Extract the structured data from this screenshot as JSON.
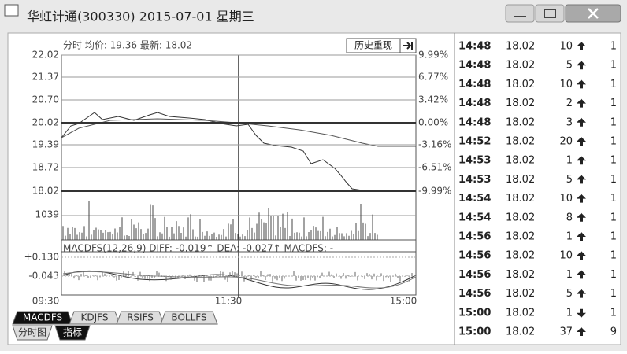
{
  "window": {
    "title": "华虹计通(300330) 2015-07-01 星期三"
  },
  "chart": {
    "header": "分时 均价: 19.36 最新: 18.02",
    "history_button": "历史重现",
    "price_labels": [
      "22.02",
      "21.37",
      "20.70",
      "20.02",
      "19.39",
      "18.72",
      "18.02"
    ],
    "percent_labels": [
      "9.99%",
      "6.77%",
      "3.42%",
      "0.00%",
      "-3.16%",
      "-6.51%",
      "-9.99%"
    ],
    "volume_label": "1039",
    "macd_header": "MACDFS(12,26,9) DIFF: -0.019↑ DEA: -0.027↑ MACDFS: -",
    "macd_labels": [
      "+0.130",
      "-0.043"
    ],
    "time_labels": [
      "09:30",
      "11:30",
      "15:00"
    ],
    "indicator_tabs": [
      "MACDFS",
      "KDJFS",
      "RSIFS",
      "BOLLFS"
    ],
    "view_tabs": [
      "分时图",
      "指标"
    ]
  },
  "trades": [
    {
      "time": "14:48",
      "price": "18.02",
      "volume": "10",
      "dir": "up",
      "count": "1"
    },
    {
      "time": "14:48",
      "price": "18.02",
      "volume": "5",
      "dir": "up",
      "count": "1"
    },
    {
      "time": "14:48",
      "price": "18.02",
      "volume": "10",
      "dir": "up",
      "count": "1"
    },
    {
      "time": "14:48",
      "price": "18.02",
      "volume": "2",
      "dir": "up",
      "count": "1"
    },
    {
      "time": "14:48",
      "price": "18.02",
      "volume": "3",
      "dir": "up",
      "count": "1"
    },
    {
      "time": "14:52",
      "price": "18.02",
      "volume": "20",
      "dir": "up",
      "count": "1"
    },
    {
      "time": "14:53",
      "price": "18.02",
      "volume": "1",
      "dir": "up",
      "count": "1"
    },
    {
      "time": "14:53",
      "price": "18.02",
      "volume": "5",
      "dir": "up",
      "count": "1"
    },
    {
      "time": "14:54",
      "price": "18.02",
      "volume": "10",
      "dir": "up",
      "count": "1"
    },
    {
      "time": "14:54",
      "price": "18.02",
      "volume": "8",
      "dir": "up",
      "count": "1"
    },
    {
      "time": "14:56",
      "price": "18.02",
      "volume": "1",
      "dir": "up",
      "count": "1"
    },
    {
      "time": "14:56",
      "price": "18.02",
      "volume": "10",
      "dir": "up",
      "count": "1"
    },
    {
      "time": "14:56",
      "price": "18.02",
      "volume": "1",
      "dir": "up",
      "count": "1"
    },
    {
      "time": "14:56",
      "price": "18.02",
      "volume": "5",
      "dir": "up",
      "count": "1"
    },
    {
      "time": "15:00",
      "price": "18.02",
      "volume": "1",
      "dir": "down",
      "count": "1"
    },
    {
      "time": "15:00",
      "price": "18.02",
      "volume": "37",
      "dir": "up",
      "count": "9"
    }
  ]
}
